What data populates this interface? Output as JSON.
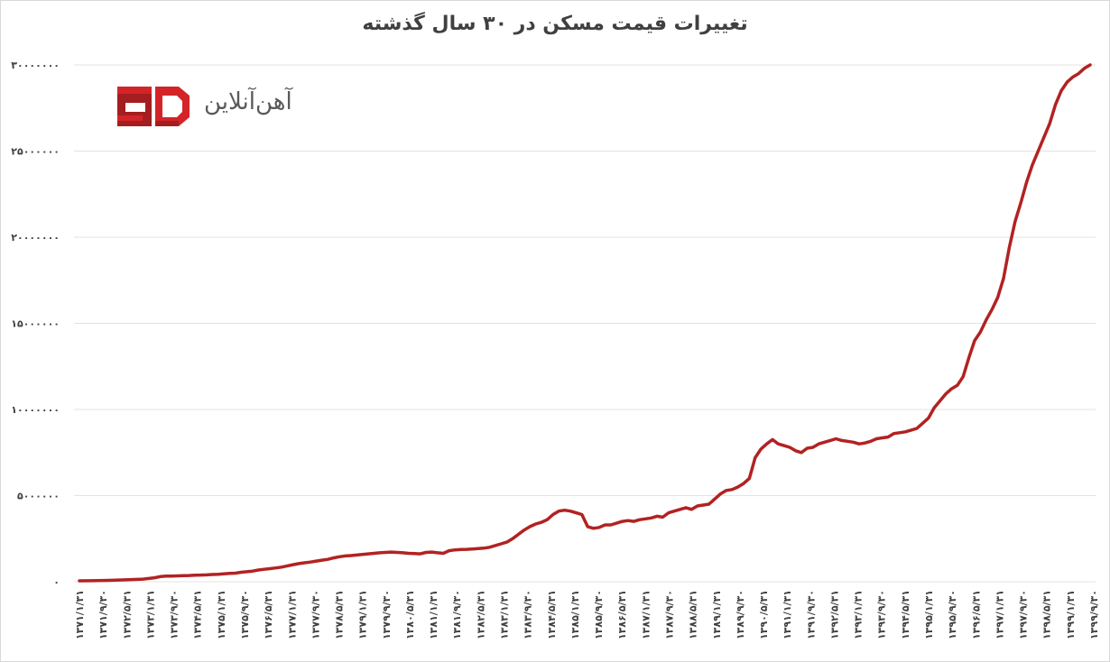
{
  "brand": {
    "name": "آهن‌آنلاین",
    "primary_color": "#d42427",
    "dark_color": "#a41d1f"
  },
  "chart_data": {
    "type": "line",
    "title": "تغییرات قیمت مسکن در ۳۰ سال گذشته",
    "xlabel": "",
    "ylabel": "",
    "ylim": [
      0,
      30000000
    ],
    "yticks": [
      0,
      5000000,
      10000000,
      15000000,
      20000000,
      25000000,
      30000000
    ],
    "ytick_labels": [
      "0",
      "5000000",
      "10000000",
      "15000000",
      "20000000",
      "25000000",
      "30000000"
    ],
    "grid": true,
    "legend": "none",
    "line_color": "#b22222",
    "x_tick_labels": [
      "1371/1/31",
      "1371/9/30",
      "1372/5/31",
      "1373/1/31",
      "1373/9/30",
      "1374/5/31",
      "1375/1/31",
      "1375/9/30",
      "1376/5/31",
      "1377/1/31",
      "1377/9/30",
      "1378/5/31",
      "1379/1/31",
      "1379/9/30",
      "1380/5/31",
      "1381/1/31",
      "1381/9/30",
      "1382/5/31",
      "1383/1/31",
      "1383/9/30",
      "1384/5/31",
      "1385/1/31",
      "1385/9/30",
      "1386/5/31",
      "1387/1/31",
      "1387/9/30",
      "1388/5/31",
      "1389/1/31",
      "1389/9/30",
      "1390/5/31",
      "1391/1/31",
      "1391/9/30",
      "1392/5/31",
      "1393/1/31",
      "1393/9/30",
      "1394/5/31",
      "1395/1/31",
      "1395/9/30",
      "1396/5/31",
      "1397/1/31",
      "1397/9/30",
      "1398/5/31",
      "1399/1/31",
      "1399/9/30"
    ],
    "series": [
      {
        "values": [
          [
            0,
            50000
          ],
          [
            2,
            60000
          ],
          [
            5,
            80000
          ],
          [
            8,
            110000
          ],
          [
            11,
            150000
          ],
          [
            13,
            230000
          ],
          [
            14,
            300000
          ],
          [
            15,
            330000
          ],
          [
            16,
            330000
          ],
          [
            17,
            340000
          ],
          [
            18,
            350000
          ],
          [
            19,
            360000
          ],
          [
            20,
            380000
          ],
          [
            21,
            390000
          ],
          [
            22,
            400000
          ],
          [
            23,
            420000
          ],
          [
            24,
            430000
          ],
          [
            25,
            460000
          ],
          [
            26,
            480000
          ],
          [
            27,
            500000
          ],
          [
            28,
            550000
          ],
          [
            29,
            580000
          ],
          [
            30,
            620000
          ],
          [
            31,
            680000
          ],
          [
            32,
            720000
          ],
          [
            33,
            760000
          ],
          [
            34,
            800000
          ],
          [
            35,
            850000
          ],
          [
            36,
            920000
          ],
          [
            37,
            990000
          ],
          [
            38,
            1050000
          ],
          [
            39,
            1100000
          ],
          [
            40,
            1140000
          ],
          [
            41,
            1200000
          ],
          [
            42,
            1250000
          ],
          [
            43,
            1300000
          ],
          [
            44,
            1380000
          ],
          [
            45,
            1450000
          ],
          [
            46,
            1500000
          ],
          [
            47,
            1520000
          ],
          [
            48,
            1550000
          ],
          [
            49,
            1580000
          ],
          [
            50,
            1620000
          ],
          [
            51,
            1650000
          ],
          [
            52,
            1680000
          ],
          [
            53,
            1700000
          ],
          [
            54,
            1720000
          ],
          [
            55,
            1700000
          ],
          [
            56,
            1680000
          ],
          [
            57,
            1650000
          ],
          [
            58,
            1640000
          ],
          [
            59,
            1620000
          ],
          [
            60,
            1700000
          ],
          [
            61,
            1720000
          ],
          [
            62,
            1680000
          ],
          [
            63,
            1650000
          ],
          [
            64,
            1800000
          ],
          [
            65,
            1850000
          ],
          [
            66,
            1870000
          ],
          [
            67,
            1880000
          ],
          [
            68,
            1900000
          ],
          [
            69,
            1920000
          ],
          [
            70,
            1950000
          ],
          [
            71,
            2000000
          ],
          [
            72,
            2100000
          ],
          [
            73,
            2200000
          ],
          [
            74,
            2300000
          ],
          [
            75,
            2500000
          ],
          [
            76,
            2750000
          ],
          [
            77,
            3000000
          ],
          [
            78,
            3200000
          ],
          [
            79,
            3350000
          ],
          [
            80,
            3450000
          ],
          [
            81,
            3600000
          ],
          [
            82,
            3900000
          ],
          [
            83,
            4100000
          ],
          [
            84,
            4150000
          ],
          [
            85,
            4100000
          ],
          [
            86,
            4000000
          ],
          [
            87,
            3900000
          ],
          [
            88,
            3200000
          ],
          [
            89,
            3100000
          ],
          [
            90,
            3150000
          ],
          [
            91,
            3300000
          ],
          [
            92,
            3300000
          ],
          [
            93,
            3400000
          ],
          [
            94,
            3500000
          ],
          [
            95,
            3550000
          ],
          [
            96,
            3500000
          ],
          [
            97,
            3600000
          ],
          [
            98,
            3650000
          ],
          [
            99,
            3700000
          ],
          [
            100,
            3800000
          ],
          [
            101,
            3750000
          ],
          [
            102,
            4000000
          ],
          [
            103,
            4100000
          ],
          [
            104,
            4200000
          ],
          [
            105,
            4300000
          ],
          [
            106,
            4200000
          ],
          [
            107,
            4400000
          ],
          [
            108,
            4450000
          ],
          [
            109,
            4500000
          ],
          [
            110,
            4800000
          ],
          [
            111,
            5100000
          ],
          [
            112,
            5300000
          ],
          [
            113,
            5350000
          ],
          [
            114,
            5500000
          ],
          [
            115,
            5700000
          ],
          [
            116,
            6000000
          ],
          [
            117,
            7200000
          ],
          [
            118,
            7700000
          ],
          [
            119,
            8000000
          ],
          [
            120,
            8250000
          ],
          [
            121,
            8000000
          ],
          [
            122,
            7900000
          ],
          [
            123,
            7800000
          ],
          [
            124,
            7600000
          ],
          [
            125,
            7500000
          ],
          [
            126,
            7750000
          ],
          [
            127,
            7800000
          ],
          [
            128,
            8000000
          ],
          [
            129,
            8100000
          ],
          [
            130,
            8200000
          ],
          [
            131,
            8300000
          ],
          [
            132,
            8200000
          ],
          [
            133,
            8150000
          ],
          [
            134,
            8100000
          ],
          [
            135,
            8000000
          ],
          [
            136,
            8050000
          ],
          [
            137,
            8150000
          ],
          [
            138,
            8300000
          ],
          [
            139,
            8350000
          ],
          [
            140,
            8400000
          ],
          [
            141,
            8600000
          ],
          [
            142,
            8650000
          ],
          [
            143,
            8700000
          ],
          [
            144,
            8800000
          ],
          [
            145,
            8900000
          ],
          [
            146,
            9200000
          ],
          [
            147,
            9500000
          ],
          [
            148,
            10100000
          ],
          [
            149,
            10500000
          ],
          [
            150,
            10900000
          ],
          [
            151,
            11200000
          ],
          [
            152,
            11400000
          ],
          [
            153,
            11900000
          ],
          [
            154,
            13000000
          ],
          [
            155,
            14000000
          ],
          [
            156,
            14500000
          ],
          [
            157,
            15200000
          ],
          [
            158,
            15800000
          ],
          [
            159,
            16500000
          ],
          [
            160,
            17600000
          ],
          [
            161,
            19400000
          ],
          [
            162,
            20900000
          ],
          [
            163,
            22000000
          ],
          [
            164,
            23200000
          ],
          [
            165,
            24200000
          ],
          [
            166,
            25000000
          ],
          [
            167,
            25800000
          ],
          [
            168,
            26600000
          ],
          [
            169,
            27700000
          ],
          [
            170,
            28500000
          ],
          [
            171,
            29000000
          ],
          [
            172,
            29300000
          ],
          [
            173,
            29500000
          ],
          [
            174,
            29800000
          ],
          [
            175,
            30000000
          ]
        ]
      }
    ]
  }
}
